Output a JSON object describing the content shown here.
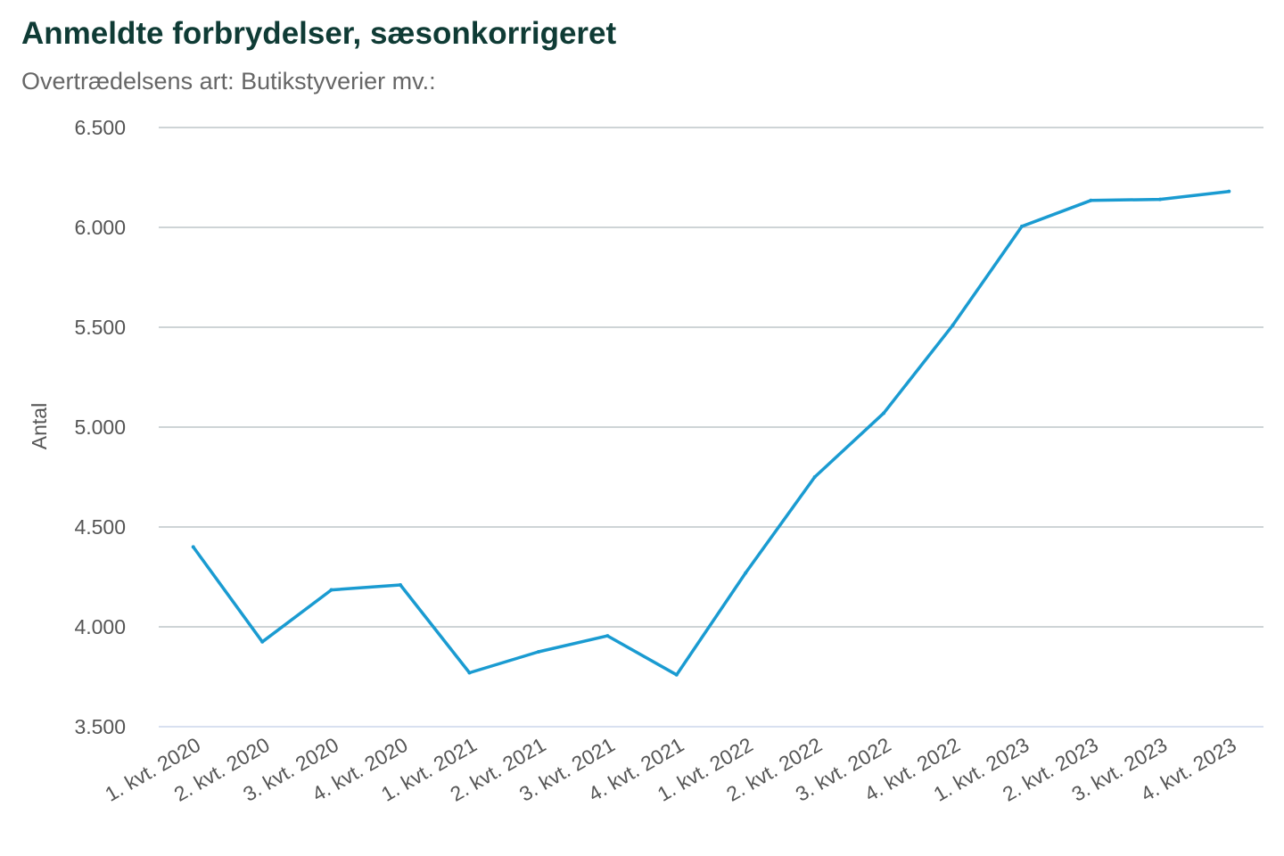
{
  "chart_data": {
    "type": "line",
    "title": "Anmeldte forbrydelser, sæsonkorrigeret",
    "subtitle": "Overtrædelsens art: Butikstyverier mv.:",
    "xlabel": "",
    "ylabel": "Antal",
    "ylim": [
      3500,
      6500
    ],
    "yticks": [
      3500,
      4000,
      4500,
      5000,
      5500,
      6000,
      6500
    ],
    "ytick_labels": [
      "3.500",
      "4.000",
      "4.500",
      "5.000",
      "5.500",
      "6.000",
      "6.500"
    ],
    "grid": true,
    "legend": "none",
    "categories": [
      "1. kvt. 2020",
      "2. kvt. 2020",
      "3. kvt. 2020",
      "4. kvt. 2020",
      "1. kvt. 2021",
      "2. kvt. 2021",
      "3. kvt. 2021",
      "4. kvt. 2021",
      "1. kvt. 2022",
      "2. kvt. 2022",
      "3. kvt. 2022",
      "4. kvt. 2022",
      "1. kvt. 2023",
      "2. kvt. 2023",
      "3. kvt. 2023",
      "4. kvt. 2023"
    ],
    "series": [
      {
        "values": [
          4400,
          3925,
          4185,
          4210,
          3770,
          3875,
          3955,
          3760,
          4270,
          4750,
          5070,
          5510,
          6005,
          6135,
          6140,
          6180
        ]
      }
    ],
    "colors": {
      "line": "#1a9bd1",
      "grid": "#b0bbbd",
      "baseline": "#ccd6eb"
    }
  }
}
